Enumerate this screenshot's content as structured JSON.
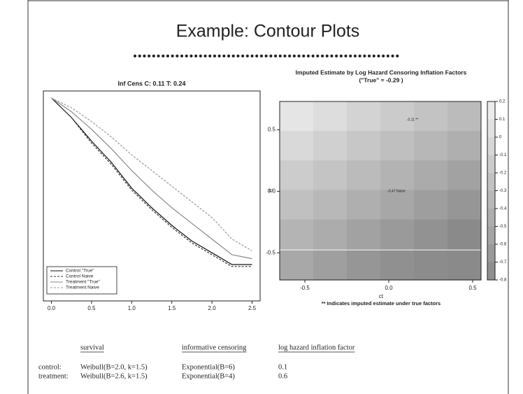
{
  "title": "Example: Contour Plots",
  "chart_data": [
    {
      "type": "line",
      "title": "Inf Cens  C: 0.11  T: 0.24",
      "x": [
        0,
        0.25,
        0.5,
        0.75,
        1,
        1.25,
        1.5,
        1.75,
        2,
        2.25,
        2.5
      ],
      "xlim": [
        -0.1,
        2.6
      ],
      "xticks": [
        {
          "value": 0,
          "label": "0.0"
        },
        0.5,
        {
          "value": 1,
          "label": "1.0"
        },
        1.5,
        {
          "value": 2,
          "label": "2.0"
        },
        2.5
      ],
      "ylim": [
        0,
        1
      ],
      "series": [
        {
          "name": "Control \"True\"",
          "color": "#111111",
          "dash": false,
          "values": [
            1,
            0.9,
            0.78,
            0.67,
            0.54,
            0.44,
            0.35,
            0.27,
            0.21,
            0.15,
            0.15
          ]
        },
        {
          "name": "Control Naive",
          "color": "#333333",
          "dash": true,
          "values": [
            1,
            0.9,
            0.77,
            0.66,
            0.53,
            0.43,
            0.34,
            0.26,
            0.2,
            0.14,
            0.14
          ]
        },
        {
          "name": "Treatment \"True\"",
          "color": "#888888",
          "dash": false,
          "values": [
            1,
            0.93,
            0.84,
            0.74,
            0.63,
            0.53,
            0.44,
            0.36,
            0.28,
            0.2,
            0.18
          ]
        },
        {
          "name": "Treatment Naive",
          "color": "#999999",
          "dash": true,
          "values": [
            1,
            0.95,
            0.88,
            0.8,
            0.71,
            0.63,
            0.55,
            0.47,
            0.39,
            0.28,
            0.22
          ]
        }
      ],
      "legend": "lower-left"
    },
    {
      "type": "contour",
      "title": "Imputed Estimate by Log Hazard Censoring Inflation Factors",
      "subtitle": "(\"True\" = -0.29 )",
      "xlabel": "ct",
      "ylabel": "tt",
      "footnote": "** Indicates imputed estimate under true factors",
      "annotations": [
        "-0.11 **",
        "-0.47 Naive"
      ],
      "xlim": [
        -0.65,
        0.55
      ],
      "ylim": [
        -0.72,
        0.73
      ],
      "xticks": [
        -0.5,
        {
          "value": 0,
          "label": "0.0"
        },
        0.5
      ],
      "yticks": [
        -0.5,
        {
          "value": 0,
          "label": "0.0"
        },
        0.5
      ],
      "x": [
        -0.55,
        -0.35,
        -0.15,
        0.05,
        0.25,
        0.45
      ],
      "y": [
        0.61,
        0.37,
        0.13,
        -0.11,
        -0.35,
        -0.6
      ],
      "z": [
        [
          0.09,
          0.01,
          -0.08,
          -0.16,
          -0.24,
          -0.32
        ],
        [
          -0.03,
          -0.11,
          -0.2,
          -0.28,
          -0.36,
          -0.44
        ],
        [
          -0.15,
          -0.23,
          -0.32,
          -0.4,
          -0.48,
          -0.56
        ],
        [
          -0.27,
          -0.35,
          -0.44,
          -0.52,
          -0.6,
          -0.68
        ],
        [
          -0.39,
          -0.47,
          -0.56,
          -0.64,
          -0.72,
          -0.8
        ],
        [
          -0.51,
          -0.59,
          -0.68,
          -0.74,
          -0.78,
          -0.8
        ]
      ],
      "zlim": [
        -0.8,
        0.2
      ],
      "zticks": [
        0.2,
        0.1,
        0,
        -0.1,
        -0.2,
        -0.3,
        -0.4,
        -0.5,
        -0.6,
        -0.7,
        -0.8
      ]
    }
  ],
  "table": {
    "columns": [
      "survival",
      "informative censoring",
      "log hazard inflation factor"
    ],
    "rows": [
      [
        "control:",
        "Weibull(B=2.0, k=1.5)",
        "Exponential(B=6)",
        "0.1"
      ],
      [
        "treatment:",
        "Weibull(B=2.6, k=1.5)",
        "Exponential(B=4)",
        "0.6"
      ]
    ]
  }
}
